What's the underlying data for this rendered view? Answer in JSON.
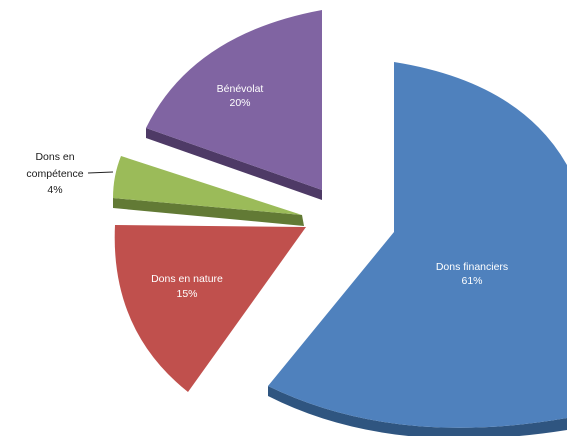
{
  "chart_data": {
    "type": "pie",
    "title": "",
    "legend": "none",
    "style": "3d-exploded",
    "slices": [
      {
        "name": "Dons financiers",
        "value": 61,
        "label": "61%",
        "color": "#4f81bd",
        "side": "#2f5580"
      },
      {
        "name": "Dons en nature",
        "value": 15,
        "label": "15%",
        "color": "#c0504d",
        "side": "#7e2f2d"
      },
      {
        "name": "Dons en compétence",
        "value": 4,
        "label": "4%",
        "color": "#9bbb59",
        "side": "#627a35"
      },
      {
        "name": "Bénévolat",
        "value": 20,
        "label": "20%",
        "color": "#8064a2",
        "side": "#4e3a66"
      }
    ],
    "outside_label": {
      "line1": "Dons en",
      "line2": "compétence",
      "line3": "4%"
    }
  }
}
